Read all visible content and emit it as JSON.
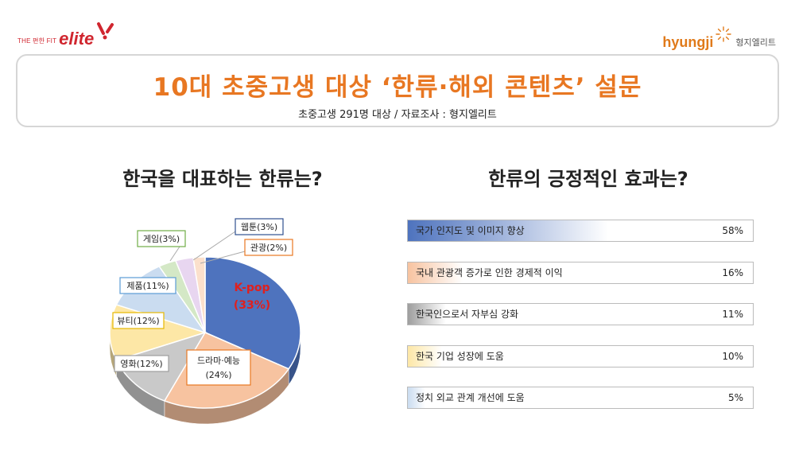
{
  "logo_left": {
    "small": "THE 편한 FIT",
    "big": "elite"
  },
  "logo_right": {
    "en": "hyungji",
    "ko": "형지엘리트"
  },
  "header": {
    "title": "10대 초중고생 대상 ‘한류·해외 콘텐츠’ 설문",
    "subtitle": "초중고생 291명 대상 / 자료조사 : 형지엘리트"
  },
  "chart_data": [
    {
      "type": "pie",
      "title": "한국을 대표하는 한류는?",
      "slices": [
        {
          "name": "K-pop",
          "value": 33,
          "label": "K-pop",
          "pct_label": "(33%)",
          "color": "#4e73be"
        },
        {
          "name": "드라마·예능",
          "value": 24,
          "label": "드라마·예능",
          "pct_label": "(24%)",
          "color": "#f7c3a0"
        },
        {
          "name": "영화",
          "value": 12,
          "label": "영화(12%)",
          "color": "#c9c9c9"
        },
        {
          "name": "뷰티",
          "value": 12,
          "label": "뷰티(12%)",
          "color": "#fde7a6"
        },
        {
          "name": "제품",
          "value": 11,
          "label": "제품(11%)",
          "color": "#cadcf0"
        },
        {
          "name": "게임",
          "value": 3,
          "label": "게임(3%)",
          "color": "#d4e8c6"
        },
        {
          "name": "웹툰",
          "value": 3,
          "label": "웹툰(3%)",
          "color": "#e8d6f0"
        },
        {
          "name": "관광",
          "value": 2,
          "label": "관광(2%)",
          "color": "#fbe0cc"
        }
      ]
    },
    {
      "type": "bar",
      "title": "한류의 긍정적인 효과는?",
      "categories": [
        "국가 인지도 및 이미지 향상",
        "국내 관광객 증가로 인한 경제적 이익",
        "한국인으로서 자부심 강화",
        "한국 기업 성장에 도움",
        "정치 외교 관계 개선에 도움"
      ],
      "values": [
        58,
        16,
        11,
        10,
        5
      ],
      "value_labels": [
        "58%",
        "16%",
        "11%",
        "10%",
        "5%"
      ],
      "colors": [
        "#4e73be",
        "#f7c3a0",
        "#9e9e9e",
        "#fde7a6",
        "#cadcf0"
      ]
    }
  ]
}
